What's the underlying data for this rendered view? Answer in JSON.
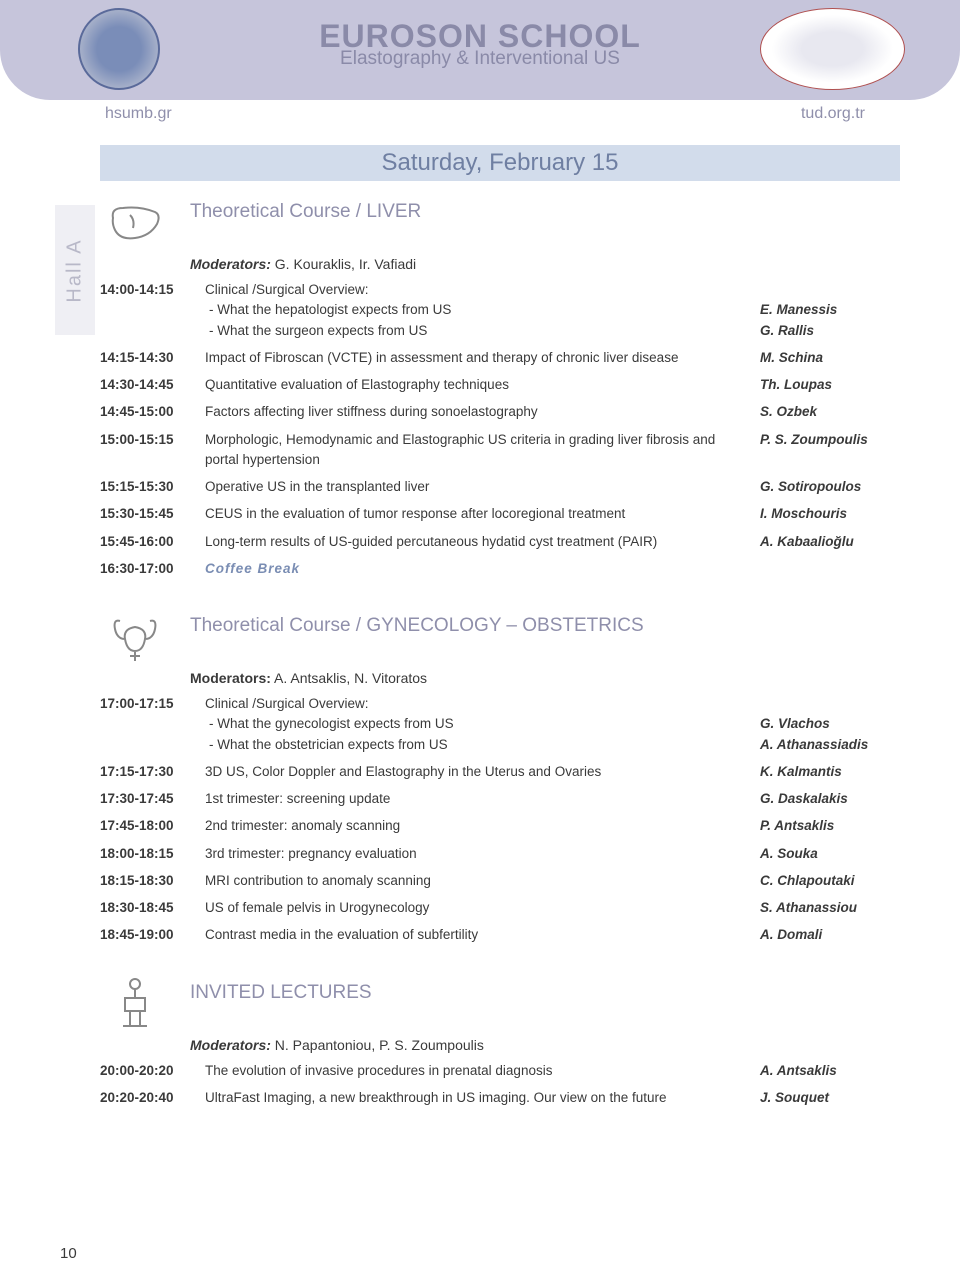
{
  "header": {
    "title_main": "EUROSON SCHOOL",
    "title_sub": "Elastography & Interventional US",
    "url_left": "hsumb.gr",
    "url_right": "tud.org.tr"
  },
  "date_banner": "Saturday, February 15",
  "hall_label": "Hall A",
  "page_number": "10",
  "sections": [
    {
      "icon": "liver",
      "title": "Theoretical Course / LIVER",
      "moderators_label": "Moderators:",
      "moderators_names": " G. Kouraklis, Ir. Vafiadi",
      "rows": [
        {
          "time": "14:00-14:15",
          "desc": "Clinical /Surgical Overview:",
          "subs": [
            "- What the hepatologist expects from US",
            "- What the surgeon expects from US"
          ],
          "speaker_lines": [
            "",
            "E. Manessis",
            "G. Rallis"
          ]
        },
        {
          "time": "14:15-14:30",
          "desc": "Impact of Fibroscan (VCTE) in assessment and therapy of chronic liver disease",
          "speaker": "M. Schina"
        },
        {
          "time": "14:30-14:45",
          "desc": "Quantitative evaluation of Elastography techniques",
          "speaker": "Th. Loupas"
        },
        {
          "time": "14:45-15:00",
          "desc": "Factors affecting liver stiffness during sonoelastography",
          "speaker": "S. Ozbek"
        },
        {
          "time": "15:00-15:15",
          "desc": "Morphologic, Hemodynamic and Elastographic US criteria in grading liver fibrosis and portal hypertension",
          "speaker": "P. S. Zoumpoulis"
        },
        {
          "time": "15:15-15:30",
          "desc": "Operative US in the transplanted liver",
          "speaker": "G. Sotiropoulos"
        },
        {
          "time": "15:30-15:45",
          "desc": "CEUS in the evaluation of tumor response after locoregional treatment",
          "speaker": "I. Moschouris"
        },
        {
          "time": "15:45-16:00",
          "desc": "Long-term results of US-guided percutaneous hydatid cyst treatment (PAIR)",
          "speaker": "A. Kabaalioğlu"
        },
        {
          "time": "16:30-17:00",
          "desc": "Coffee Break",
          "coffee": true
        }
      ]
    },
    {
      "icon": "gyn",
      "title": "Theoretical Course / GYNECOLOGY – OBSTETRICS",
      "moderators_label": "Moderators:",
      "moderators_names": " A. Antsaklis, N. Vitoratos",
      "mod_bold_only": true,
      "rows": [
        {
          "time": "17:00-17:15",
          "desc": "Clinical /Surgical Overview:",
          "subs": [
            "- What the gynecologist expects from US",
            "- What the obstetrician expects from US"
          ],
          "speaker_lines": [
            "",
            "G. Vlachos",
            "A. Athanassiadis"
          ]
        },
        {
          "time": "17:15-17:30",
          "desc": "3D US, Color Doppler and Elastography in the Uterus and Ovaries",
          "speaker": "K. Kalmantis"
        },
        {
          "time": "17:30-17:45",
          "desc": "1st trimester: screening update",
          "speaker": "G. Daskalakis"
        },
        {
          "time": "17:45-18:00",
          "desc": "2nd trimester: anomaly scanning",
          "speaker": "P. Antsaklis"
        },
        {
          "time": "18:00-18:15",
          "desc": "3rd trimester: pregnancy evaluation",
          "speaker": "A. Souka"
        },
        {
          "time": "18:15-18:30",
          "desc": "MRI contribution to anomaly scanning",
          "speaker": "C. Chlapoutaki"
        },
        {
          "time": "18:30-18:45",
          "desc": "US of female pelvis in Urogynecology",
          "speaker": "S. Athanassiou"
        },
        {
          "time": "18:45-19:00",
          "desc": "Contrast media in the evaluation of subfertility",
          "speaker": "A. Domali"
        }
      ]
    },
    {
      "icon": "lecture",
      "title": "INVITED LECTURES",
      "moderators_label": "Moderators:",
      "moderators_names": " N. Papantoniou, P. S. Zoumpoulis",
      "rows": [
        {
          "time": "20:00-20:20",
          "desc": "The evolution of invasive procedures in prenatal diagnosis",
          "speaker": "A. Antsaklis"
        },
        {
          "time": "20:20-20:40",
          "desc": "UltraFast Imaging, a new breakthrough in US imaging. Our view on the future",
          "speaker": "J. Souquet"
        }
      ]
    }
  ],
  "colors": {
    "header_band": "#c6c5db",
    "date_bg": "#d2dceb",
    "section_title": "#8f8fab",
    "coffee": "#7a8db3"
  }
}
